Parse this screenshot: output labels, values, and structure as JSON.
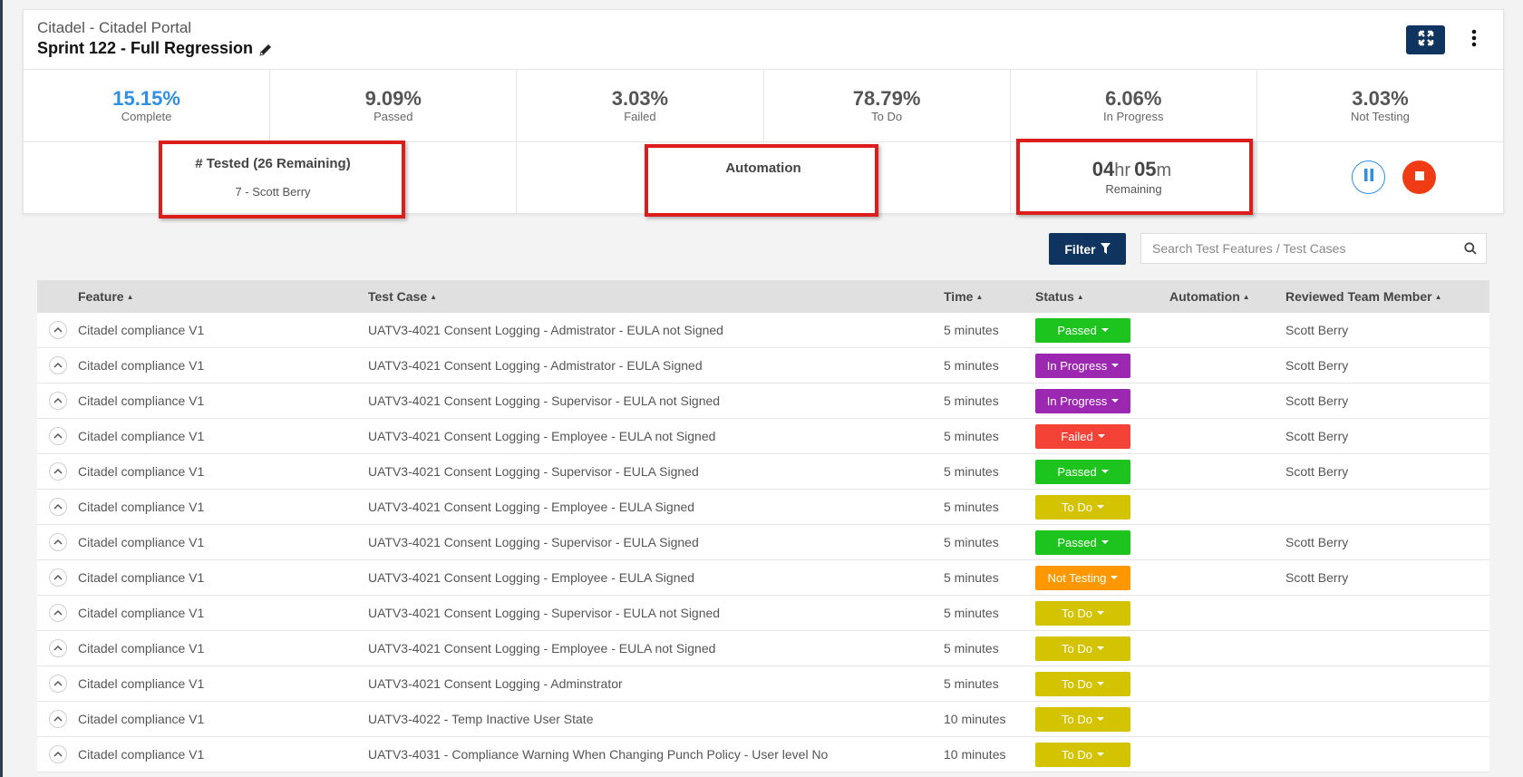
{
  "header": {
    "project": "Citadel - Citadel Portal",
    "sprint_title": "Sprint 122 - Full Regression"
  },
  "stats": [
    {
      "value": "15.15%",
      "label": "Complete",
      "color": "#2e8fe6"
    },
    {
      "value": "9.09%",
      "label": "Passed"
    },
    {
      "value": "3.03%",
      "label": "Failed"
    },
    {
      "value": "78.79%",
      "label": "To Do"
    },
    {
      "value": "6.06%",
      "label": "In Progress"
    },
    {
      "value": "3.03%",
      "label": "Not Testing"
    }
  ],
  "tested": {
    "title": "# Tested (26 Remaining)",
    "subtitle": "7 - Scott Berry"
  },
  "automation": {
    "title": "Automation"
  },
  "timer": {
    "hours": "04",
    "hours_unit": "hr",
    "minutes": "05",
    "minutes_unit": "m",
    "label": "Remaining"
  },
  "toolbar": {
    "filter_label": "Filter",
    "search_placeholder": "Search Test Features / Test Cases"
  },
  "table": {
    "columns": [
      "Feature",
      "Test Case",
      "Time",
      "Status",
      "Automation",
      "Reviewed Team Member"
    ],
    "rows": [
      {
        "feature": "Citadel compliance V1",
        "test_case": "UATV3-4021 Consent Logging - Admistrator - EULA not Signed",
        "time": "5 minutes",
        "status": "Passed",
        "member": "Scott Berry"
      },
      {
        "feature": "Citadel compliance V1",
        "test_case": "UATV3-4021 Consent Logging - Admistrator - EULA Signed",
        "time": "5 minutes",
        "status": "In Progress",
        "member": "Scott Berry"
      },
      {
        "feature": "Citadel compliance V1",
        "test_case": "UATV3-4021 Consent Logging - Supervisor - EULA not Signed",
        "time": "5 minutes",
        "status": "In Progress",
        "member": "Scott Berry"
      },
      {
        "feature": "Citadel compliance V1",
        "test_case": "UATV3-4021 Consent Logging - Employee - EULA not Signed",
        "time": "5 minutes",
        "status": "Failed",
        "member": "Scott Berry"
      },
      {
        "feature": "Citadel compliance V1",
        "test_case": "UATV3-4021 Consent Logging - Supervisor - EULA Signed",
        "time": "5 minutes",
        "status": "Passed",
        "member": "Scott Berry"
      },
      {
        "feature": "Citadel compliance V1",
        "test_case": "UATV3-4021 Consent Logging - Employee - EULA Signed",
        "time": "5 minutes",
        "status": "To Do",
        "member": ""
      },
      {
        "feature": "Citadel compliance V1",
        "test_case": "UATV3-4021 Consent Logging - Supervisor - EULA Signed",
        "time": "5 minutes",
        "status": "Passed",
        "member": "Scott Berry"
      },
      {
        "feature": "Citadel compliance V1",
        "test_case": "UATV3-4021 Consent Logging - Employee - EULA Signed",
        "time": "5 minutes",
        "status": "Not Testing",
        "member": "Scott Berry"
      },
      {
        "feature": "Citadel compliance V1",
        "test_case": "UATV3-4021 Consent Logging - Supervisor - EULA not Signed",
        "time": "5 minutes",
        "status": "To Do",
        "member": ""
      },
      {
        "feature": "Citadel compliance V1",
        "test_case": "UATV3-4021 Consent Logging - Employee - EULA not Signed",
        "time": "5 minutes",
        "status": "To Do",
        "member": ""
      },
      {
        "feature": "Citadel compliance V1",
        "test_case": "UATV3-4021 Consent Logging - Adminstrator",
        "time": "5 minutes",
        "status": "To Do",
        "member": ""
      },
      {
        "feature": "Citadel compliance V1",
        "test_case": "UATV3-4022 - Temp Inactive User State",
        "time": "10 minutes",
        "status": "To Do",
        "member": ""
      },
      {
        "feature": "Citadel compliance V1",
        "test_case": "UATV3-4031 - Compliance Warning When Changing Punch Policy - User level No",
        "time": "10 minutes",
        "status": "To Do",
        "member": ""
      }
    ]
  },
  "status_colors": {
    "Passed": "#1ec41e",
    "In Progress": "#9c27b0",
    "Failed": "#f44336",
    "To Do": "#d4c300",
    "Not Testing": "#ff9800"
  },
  "icons": {
    "edit": "pencil-icon",
    "expand": "fullscreen-expand-icon",
    "more": "vertical-dots-icon",
    "filter": "funnel-icon",
    "search": "magnifier-icon",
    "pause": "pause-icon",
    "stop": "stop-icon",
    "row_toggle": "chevron-up-icon",
    "sort": "sort-caret-icon"
  }
}
